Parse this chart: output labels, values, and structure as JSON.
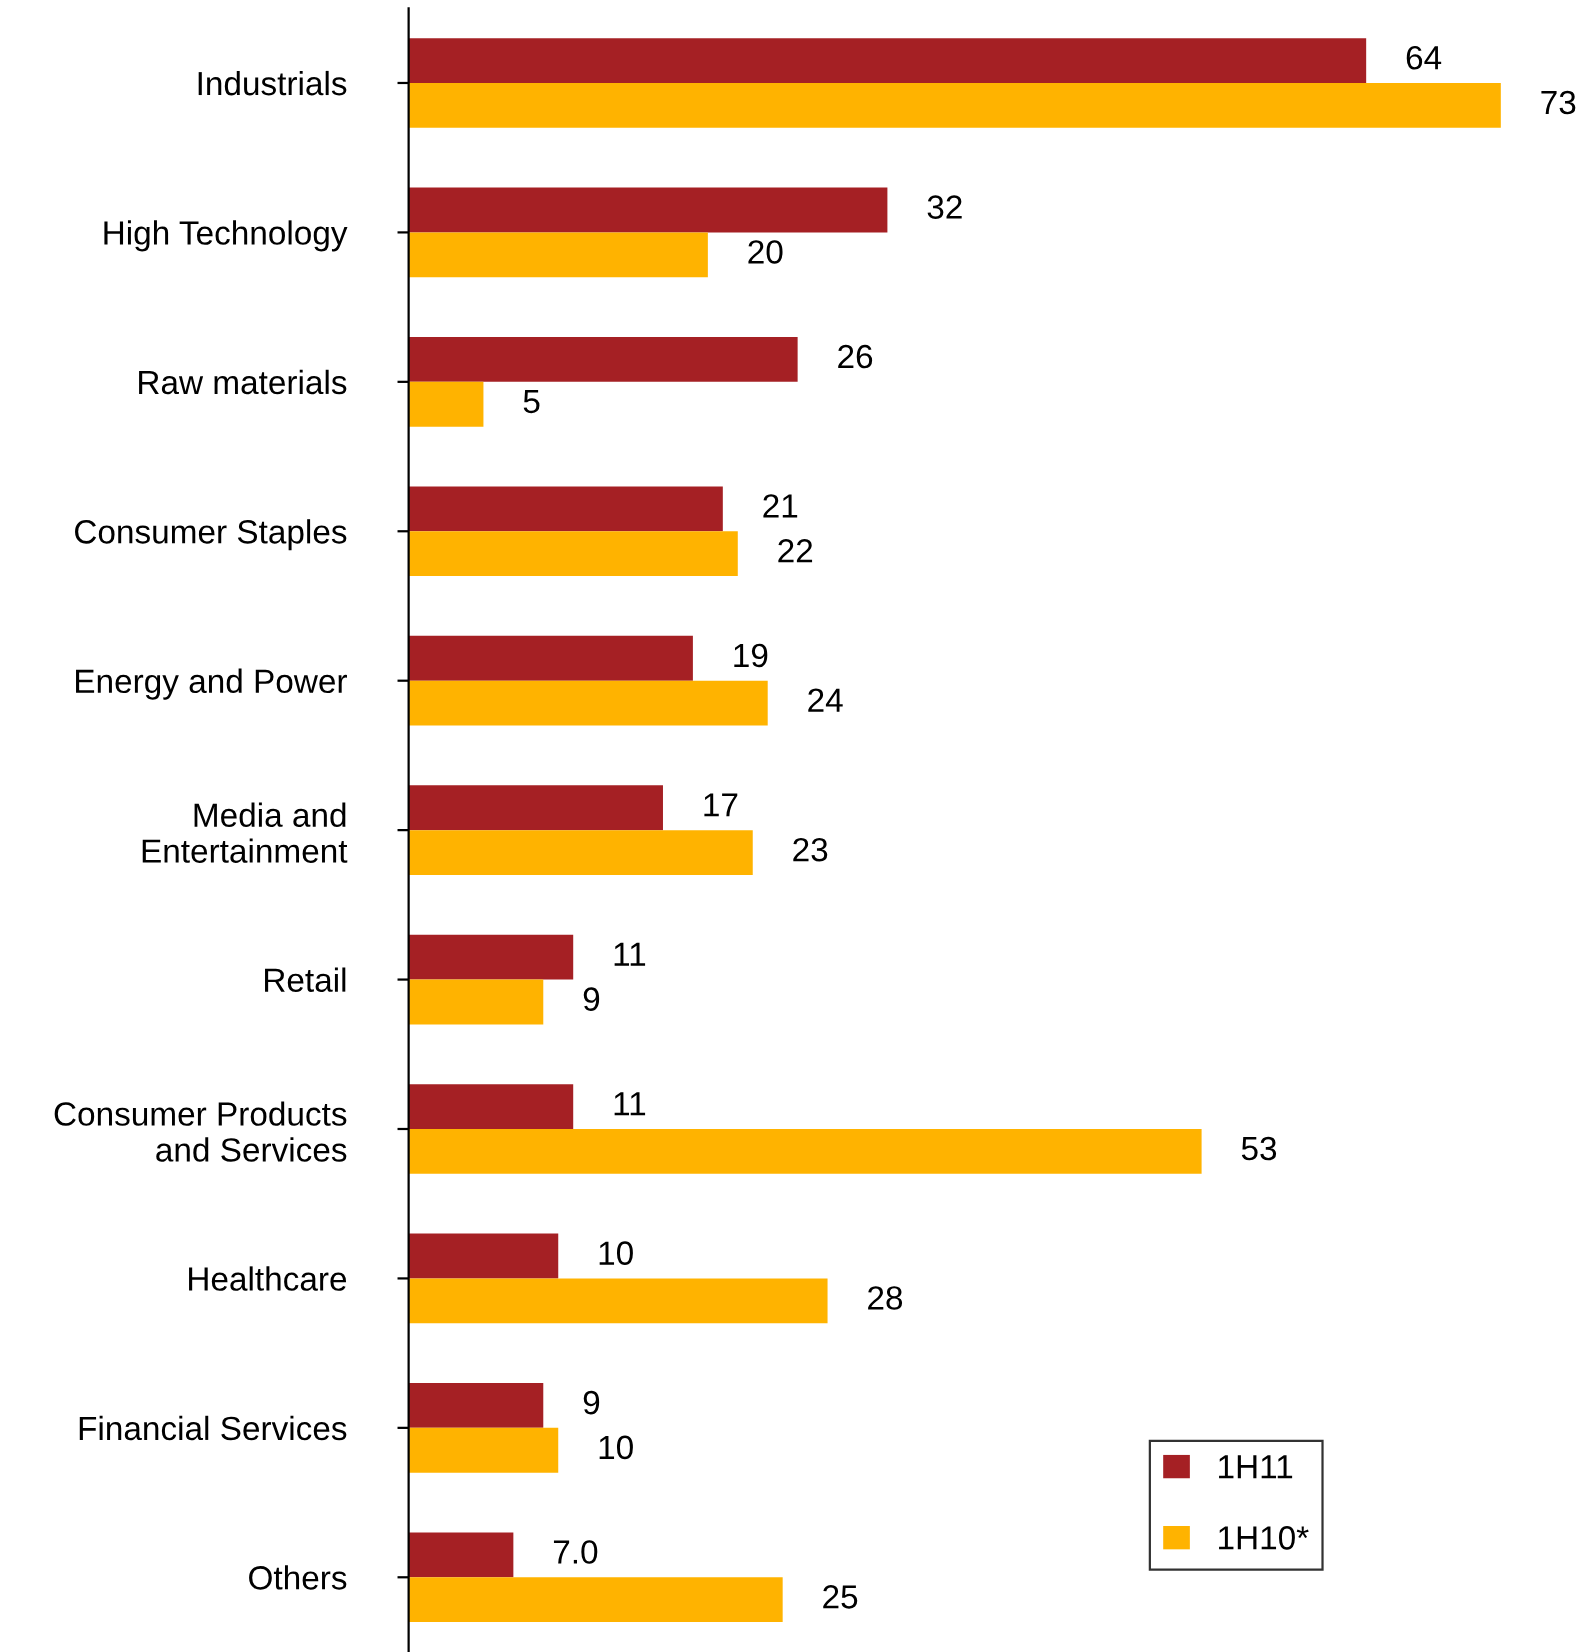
{
  "chart_data": {
    "type": "bar",
    "orientation": "horizontal",
    "categories": [
      "Industrials",
      "High Technology",
      "Raw materials",
      "Consumer Staples",
      "Energy and Power",
      "Media and\nEntertainment",
      "Retail",
      "Consumer Products\nand Services",
      "Healthcare",
      "Financial Services",
      "Others"
    ],
    "series": [
      {
        "name": "1H11",
        "color": "#a52024",
        "values": [
          64,
          32,
          26,
          21,
          19,
          17,
          11,
          11,
          10,
          9,
          7.0
        ],
        "value_labels": [
          "64",
          "32",
          "26",
          "21",
          "19",
          "17",
          "11",
          "11",
          "10",
          "9",
          "7.0"
        ]
      },
      {
        "name": "1H10*",
        "color": "#ffb300",
        "values": [
          73,
          20,
          5,
          22,
          24,
          23,
          9,
          53,
          28,
          10,
          25
        ],
        "value_labels": [
          "73",
          "20",
          "5",
          "22",
          "24",
          "23",
          "9",
          "53",
          "28",
          "10",
          "25"
        ]
      }
    ],
    "tick_labels": "y",
    "grid": false,
    "legend": "bottom right"
  }
}
